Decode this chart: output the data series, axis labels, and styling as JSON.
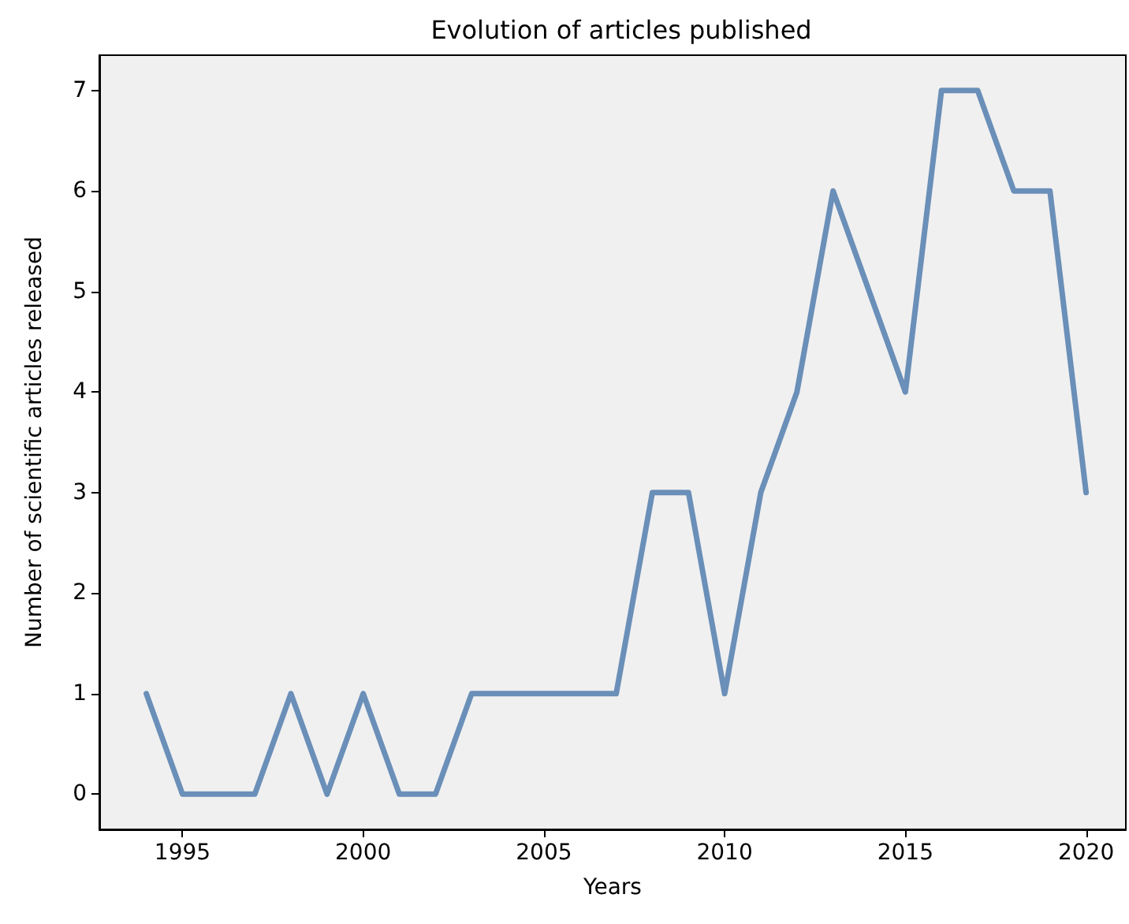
{
  "chart_data": {
    "type": "line",
    "title": "Evolution of articles published",
    "xlabel": "Years",
    "ylabel": "Number of scientific articles released",
    "x": [
      1994,
      1995,
      1996,
      1997,
      1998,
      1999,
      2000,
      2001,
      2002,
      2003,
      2004,
      2005,
      2006,
      2007,
      2008,
      2009,
      2010,
      2011,
      2012,
      2013,
      2014,
      2015,
      2016,
      2017,
      2018,
      2019,
      2020
    ],
    "series": [
      {
        "color": "#6a8fb8",
        "values": [
          1,
          0,
          0,
          0,
          1,
          0,
          1,
          0,
          0,
          1,
          1,
          1,
          1,
          1,
          3,
          3,
          1,
          3,
          4,
          6,
          5,
          4,
          7,
          7,
          6,
          6,
          3
        ]
      }
    ],
    "xlim": [
      1992.7,
      2021.1
    ],
    "xticks": [
      1995,
      2000,
      2005,
      2010,
      2015,
      2020
    ],
    "ylim": [
      -0.35,
      7.35
    ],
    "yticks": [
      0,
      1,
      2,
      3,
      4,
      5,
      6,
      7
    ],
    "grid": false,
    "marker": "none",
    "line_style": "solid"
  }
}
